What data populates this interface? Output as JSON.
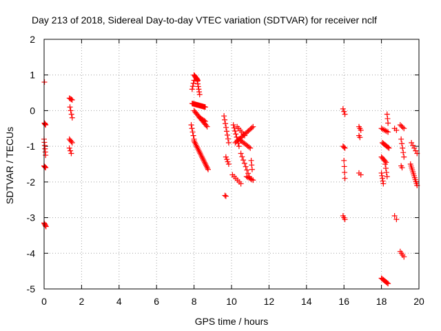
{
  "chart_data": {
    "type": "scatter",
    "title": "Day 213 of 2018, Sidereal Day-to-day VTEC variation (SDTVAR) for receiver nclf",
    "xlabel": "GPS time / hours",
    "ylabel": "SDTVAR / TECUs",
    "xlim": [
      0,
      20
    ],
    "ylim": [
      -5,
      2
    ],
    "xticks": [
      "0",
      "2",
      "4",
      "6",
      "8",
      "10",
      "12",
      "14",
      "16",
      "18",
      "20"
    ],
    "yticks": [
      "-5",
      "-4",
      "-3",
      "-2",
      "-1",
      "0",
      "1",
      "2"
    ],
    "grid": true,
    "marker": "+",
    "color": "#ff0000",
    "series": [
      {
        "name": "SDTVAR",
        "segments": [
          [
            0.02,
            0.8,
            0.02,
            0.78,
            1
          ],
          [
            0.02,
            -0.35,
            0.08,
            -0.4,
            4
          ],
          [
            0.0,
            -0.8,
            0.08,
            -1.25,
            6
          ],
          [
            0.0,
            -1.55,
            0.08,
            -1.6,
            4
          ],
          [
            0.0,
            -3.15,
            0.1,
            -3.25,
            5
          ],
          [
            1.35,
            0.35,
            1.5,
            0.3,
            4
          ],
          [
            1.38,
            0.1,
            1.5,
            -0.2,
            4
          ],
          [
            1.35,
            -0.8,
            1.5,
            -0.9,
            4
          ],
          [
            1.35,
            -1.05,
            1.45,
            -1.2,
            3
          ],
          [
            7.9,
            0.6,
            8.0,
            0.85,
            4
          ],
          [
            8.0,
            1.0,
            8.2,
            0.85,
            8
          ],
          [
            8.15,
            0.9,
            8.3,
            0.45,
            7
          ],
          [
            7.9,
            0.2,
            8.6,
            0.1,
            20
          ],
          [
            8.0,
            0.0,
            8.7,
            -0.45,
            15
          ],
          [
            8.3,
            -0.2,
            8.6,
            -0.3,
            6
          ],
          [
            7.85,
            -0.4,
            8.0,
            -0.8,
            5
          ],
          [
            8.0,
            -0.85,
            8.75,
            -1.65,
            22
          ],
          [
            9.6,
            -0.15,
            9.85,
            -0.9,
            8
          ],
          [
            9.7,
            -1.3,
            9.85,
            -1.5,
            4
          ],
          [
            9.65,
            -2.38,
            9.7,
            -2.4,
            2
          ],
          [
            10.05,
            -1.8,
            10.5,
            -2.05,
            6
          ],
          [
            10.1,
            -0.4,
            10.4,
            -1.0,
            8
          ],
          [
            10.3,
            -0.45,
            10.7,
            -0.7,
            6
          ],
          [
            10.2,
            -0.9,
            11.15,
            -0.45,
            16
          ],
          [
            10.4,
            -0.8,
            11.0,
            -1.05,
            10
          ],
          [
            10.5,
            -1.2,
            10.95,
            -1.85,
            8
          ],
          [
            10.8,
            -1.85,
            11.15,
            -1.95,
            6
          ],
          [
            11.05,
            -1.4,
            11.1,
            -1.65,
            3
          ],
          [
            15.95,
            0.05,
            16.05,
            -0.1,
            3
          ],
          [
            15.95,
            -1.0,
            16.05,
            -1.05,
            3
          ],
          [
            16.0,
            -1.4,
            16.05,
            -1.9,
            4
          ],
          [
            15.95,
            -2.95,
            16.05,
            -3.05,
            3
          ],
          [
            16.8,
            -0.45,
            16.9,
            -0.55,
            3
          ],
          [
            16.8,
            -0.7,
            16.85,
            -0.75,
            2
          ],
          [
            16.8,
            -1.75,
            16.9,
            -1.8,
            2
          ],
          [
            18.0,
            -0.5,
            18.35,
            -0.6,
            6
          ],
          [
            18.05,
            -0.9,
            18.4,
            -1.05,
            8
          ],
          [
            18.0,
            -1.3,
            18.25,
            -1.45,
            6
          ],
          [
            18.0,
            -1.75,
            18.1,
            -2.05,
            5
          ],
          [
            18.2,
            -1.5,
            18.3,
            -1.85,
            4
          ],
          [
            18.3,
            -0.1,
            18.35,
            -0.35,
            3
          ],
          [
            18.0,
            -4.7,
            18.35,
            -4.85,
            8
          ],
          [
            18.7,
            -0.5,
            18.8,
            -0.55,
            2
          ],
          [
            18.7,
            -2.95,
            18.8,
            -3.05,
            2
          ],
          [
            19.0,
            -0.4,
            19.2,
            -0.5,
            4
          ],
          [
            19.05,
            -0.8,
            19.2,
            -1.3,
            5
          ],
          [
            19.05,
            -1.55,
            19.1,
            -1.6,
            2
          ],
          [
            19.0,
            -3.95,
            19.2,
            -4.1,
            4
          ],
          [
            19.6,
            -0.9,
            19.9,
            -1.2,
            5
          ],
          [
            19.55,
            -1.5,
            19.9,
            -2.1,
            12
          ]
        ]
      }
    ]
  }
}
